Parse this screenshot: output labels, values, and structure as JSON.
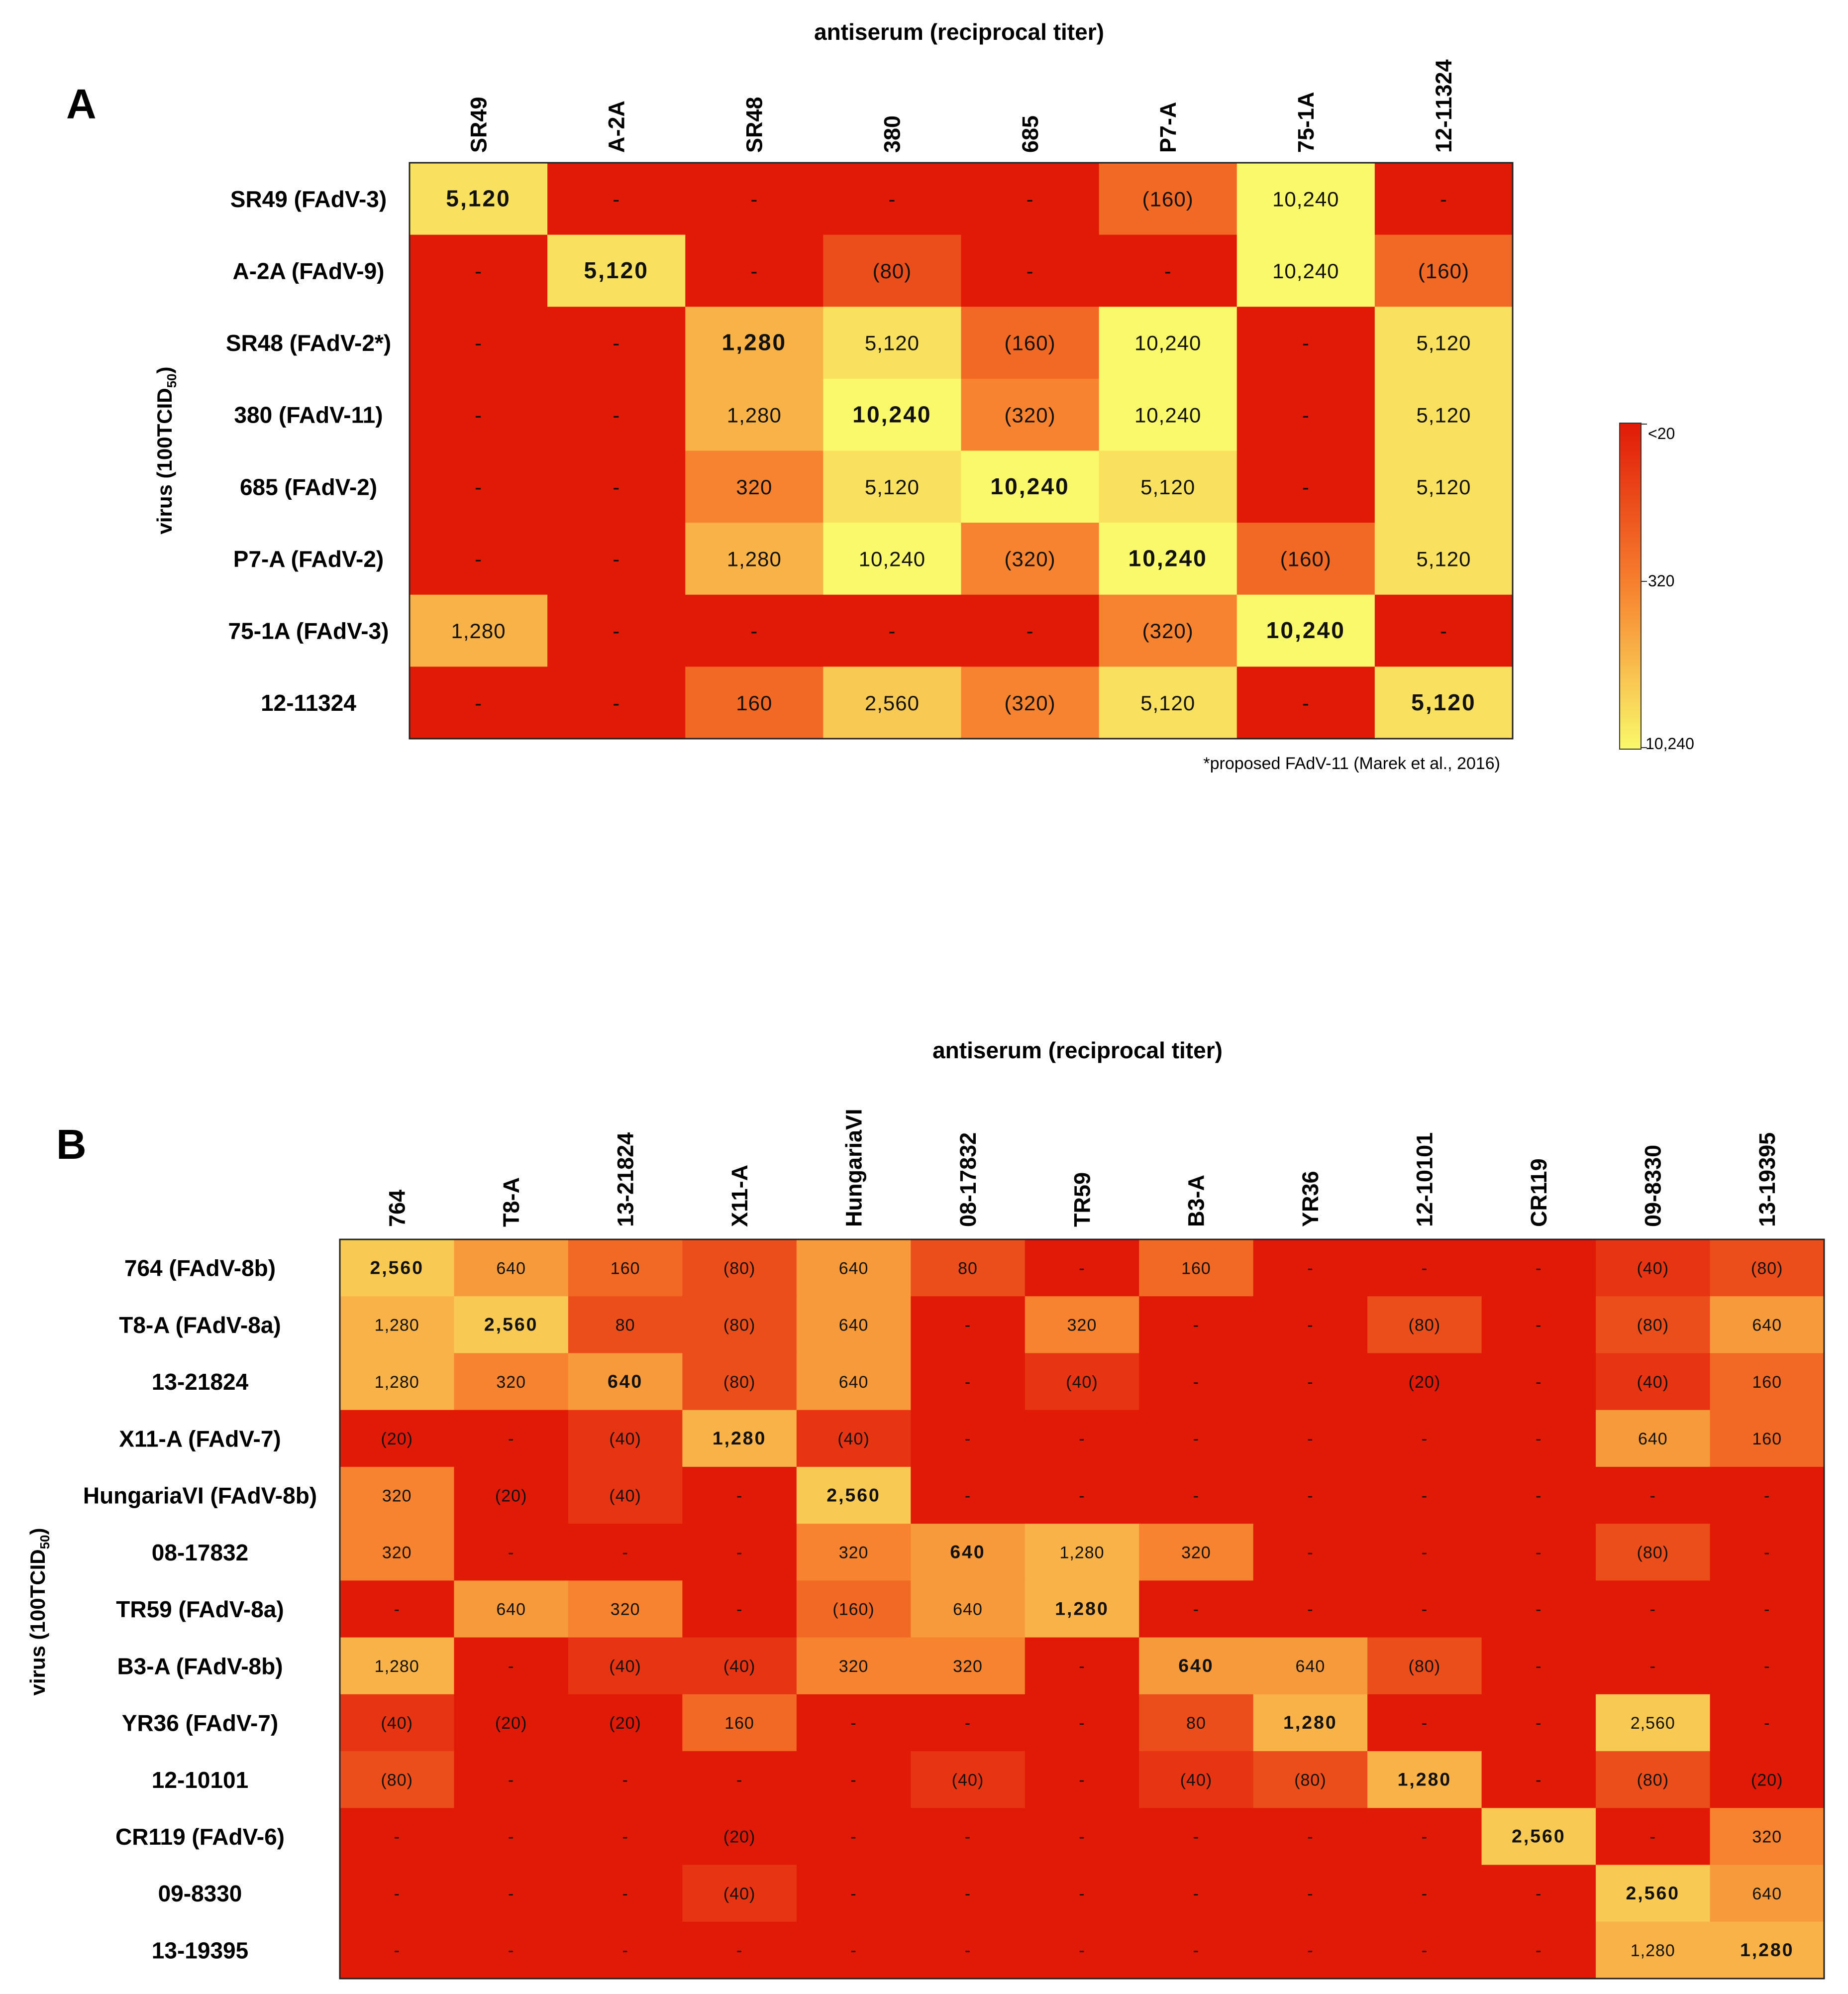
{
  "chart_data": [
    {
      "type": "heatmap",
      "panel_label": "A",
      "title": "antiserum (reciprocal titer)",
      "ylabel": "virus (100TCID",
      "ylabel_sub": "50",
      "ylabel_close": ")",
      "columns": [
        "SR49",
        "A-2A",
        "SR48",
        "380",
        "685",
        "P7-A",
        "75-1A",
        "12-11324"
      ],
      "rows": [
        "SR49 (FAdV-3)",
        "A-2A (FAdV-9)",
        "SR48 (FAdV-2*)",
        "380 (FAdV-11)",
        "685 (FAdV-2)",
        "P7-A (FAdV-2)",
        "75-1A (FAdV-3)",
        "12-11324"
      ],
      "cells": [
        [
          "5,120",
          "-",
          "-",
          "-",
          "-",
          "(160)",
          "10,240",
          "-"
        ],
        [
          "-",
          "5,120",
          "-",
          "(80)",
          "-",
          "-",
          "10,240",
          "(160)"
        ],
        [
          "-",
          "-",
          "1,280",
          "5,120",
          "(160)",
          "10,240",
          "-",
          "5,120"
        ],
        [
          "-",
          "-",
          "1,280",
          "10,240",
          "(320)",
          "10,240",
          "-",
          "5,120"
        ],
        [
          "-",
          "-",
          "320",
          "5,120",
          "10,240",
          "5,120",
          "-",
          "5,120"
        ],
        [
          "-",
          "-",
          "1,280",
          "10,240",
          "(320)",
          "10,240",
          "(160)",
          "5,120"
        ],
        [
          "1,280",
          "-",
          "-",
          "-",
          "-",
          "(320)",
          "10,240",
          "-"
        ],
        [
          "-",
          "-",
          "160",
          "2,560",
          "(320)",
          "5,120",
          "-",
          "5,120"
        ]
      ],
      "titers": [
        [
          5120,
          0,
          0,
          0,
          0,
          160,
          10240,
          0
        ],
        [
          0,
          5120,
          0,
          80,
          0,
          0,
          10240,
          160
        ],
        [
          0,
          0,
          1280,
          5120,
          160,
          10240,
          0,
          5120
        ],
        [
          0,
          0,
          1280,
          10240,
          320,
          10240,
          0,
          5120
        ],
        [
          0,
          0,
          320,
          5120,
          10240,
          5120,
          0,
          5120
        ],
        [
          0,
          0,
          1280,
          10240,
          320,
          10240,
          160,
          5120
        ],
        [
          1280,
          0,
          0,
          0,
          0,
          320,
          10240,
          0
        ],
        [
          0,
          0,
          160,
          2560,
          320,
          5120,
          0,
          5120
        ]
      ],
      "bold": [
        [
          0,
          0
        ],
        [
          1,
          1
        ],
        [
          2,
          2
        ],
        [
          3,
          3
        ],
        [
          4,
          4
        ],
        [
          5,
          5
        ],
        [
          6,
          6
        ],
        [
          7,
          7
        ]
      ],
      "footnote": "*proposed FAdV-11 (Marek et al., 2016)",
      "colorbar": {
        "label_top": "<20",
        "label_mid": "320",
        "label_bottom": "10,240",
        "colors": [
          "#e11a08",
          "#f7822f",
          "#f9f96b"
        ]
      }
    },
    {
      "type": "heatmap",
      "panel_label": "B",
      "title": "antiserum (reciprocal titer)",
      "ylabel": "virus (100TCID",
      "ylabel_sub": "50",
      "ylabel_close": ")",
      "columns": [
        "764",
        "T8-A",
        "13-21824",
        "X11-A",
        "HungariaVI",
        "08-17832",
        "TR59",
        "B3-A",
        "YR36",
        "12-10101",
        "CR119",
        "09-8330",
        "13-19395"
      ],
      "rows": [
        "764 (FAdV-8b)",
        "T8-A (FAdV-8a)",
        "13-21824",
        "X11-A (FAdV-7)",
        "HungariaVI (FAdV-8b)",
        "08-17832",
        "TR59 (FAdV-8a)",
        "B3-A (FAdV-8b)",
        "YR36 (FAdV-7)",
        "12-10101",
        "CR119 (FAdV-6)",
        "09-8330",
        "13-19395"
      ],
      "cells": [
        [
          "2,560",
          "640",
          "160",
          "(80)",
          "640",
          "80",
          "-",
          "160",
          "-",
          "-",
          "-",
          "(40)",
          "(80)"
        ],
        [
          "1,280",
          "2,560",
          "80",
          "(80)",
          "640",
          "-",
          "320",
          "-",
          "-",
          "(80)",
          "-",
          "(80)",
          "640"
        ],
        [
          "1,280",
          "320",
          "640",
          "(80)",
          "640",
          "-",
          "(40)",
          "-",
          "-",
          "(20)",
          "-",
          "(40)",
          "160"
        ],
        [
          "(20)",
          "-",
          "(40)",
          "1,280",
          "(40)",
          "-",
          "-",
          "-",
          "-",
          "-",
          "-",
          "640",
          "160"
        ],
        [
          "320",
          "(20)",
          "(40)",
          "-",
          "2,560",
          "-",
          "-",
          "-",
          "-",
          "-",
          "-",
          "-",
          "-"
        ],
        [
          "320",
          "-",
          "-",
          "-",
          "320",
          "640",
          "1,280",
          "320",
          "-",
          "-",
          "-",
          "(80)",
          "-"
        ],
        [
          "-",
          "640",
          "320",
          "-",
          "(160)",
          "640",
          "1,280",
          "-",
          "-",
          "-",
          "-",
          "-",
          "-"
        ],
        [
          "1,280",
          "-",
          "(40)",
          "(40)",
          "320",
          "320",
          "-",
          "640",
          "640",
          "(80)",
          "-",
          "-",
          "-"
        ],
        [
          "(40)",
          "(20)",
          "(20)",
          "160",
          "-",
          "-",
          "-",
          "80",
          "1,280",
          "-",
          "-",
          "2,560",
          "-"
        ],
        [
          "(80)",
          "-",
          "-",
          "-",
          "-",
          "(40)",
          "-",
          "(40)",
          "(80)",
          "1,280",
          "-",
          "(80)",
          "(20)"
        ],
        [
          "-",
          "-",
          "-",
          "(20)",
          "-",
          "-",
          "-",
          "-",
          "-",
          "-",
          "2,560",
          "-",
          "320"
        ],
        [
          "-",
          "-",
          "-",
          "(40)",
          "-",
          "-",
          "-",
          "-",
          "-",
          "-",
          "-",
          "2,560",
          "640"
        ],
        [
          "-",
          "-",
          "-",
          "-",
          "-",
          "-",
          "-",
          "-",
          "-",
          "-",
          "-",
          "1,280",
          "1,280"
        ]
      ],
      "titers": [
        [
          2560,
          640,
          160,
          80,
          640,
          80,
          0,
          160,
          0,
          0,
          0,
          40,
          80
        ],
        [
          1280,
          2560,
          80,
          80,
          640,
          0,
          320,
          0,
          0,
          80,
          0,
          80,
          640
        ],
        [
          1280,
          320,
          640,
          80,
          640,
          0,
          40,
          0,
          0,
          20,
          0,
          40,
          160
        ],
        [
          20,
          0,
          40,
          1280,
          40,
          0,
          0,
          0,
          0,
          0,
          0,
          640,
          160
        ],
        [
          320,
          20,
          40,
          0,
          2560,
          0,
          0,
          0,
          0,
          0,
          0,
          0,
          0
        ],
        [
          320,
          0,
          0,
          0,
          320,
          640,
          1280,
          320,
          0,
          0,
          0,
          80,
          0
        ],
        [
          0,
          640,
          320,
          0,
          160,
          640,
          1280,
          0,
          0,
          0,
          0,
          0,
          0
        ],
        [
          1280,
          0,
          40,
          40,
          320,
          320,
          0,
          640,
          640,
          80,
          0,
          0,
          0
        ],
        [
          40,
          20,
          20,
          160,
          0,
          0,
          0,
          80,
          1280,
          0,
          0,
          2560,
          0
        ],
        [
          80,
          0,
          0,
          0,
          0,
          40,
          0,
          40,
          80,
          1280,
          0,
          80,
          20
        ],
        [
          0,
          0,
          0,
          20,
          0,
          0,
          0,
          0,
          0,
          0,
          2560,
          0,
          320
        ],
        [
          0,
          0,
          0,
          40,
          0,
          0,
          0,
          0,
          0,
          0,
          0,
          2560,
          640
        ],
        [
          0,
          0,
          0,
          0,
          0,
          0,
          0,
          0,
          0,
          0,
          0,
          1280,
          1280
        ]
      ],
      "bold": [
        [
          0,
          0
        ],
        [
          1,
          1
        ],
        [
          2,
          2
        ],
        [
          3,
          3
        ],
        [
          4,
          4
        ],
        [
          5,
          5
        ],
        [
          6,
          6
        ],
        [
          7,
          7
        ],
        [
          8,
          8
        ],
        [
          9,
          9
        ],
        [
          10,
          10
        ],
        [
          11,
          11
        ],
        [
          12,
          12
        ]
      ]
    }
  ]
}
